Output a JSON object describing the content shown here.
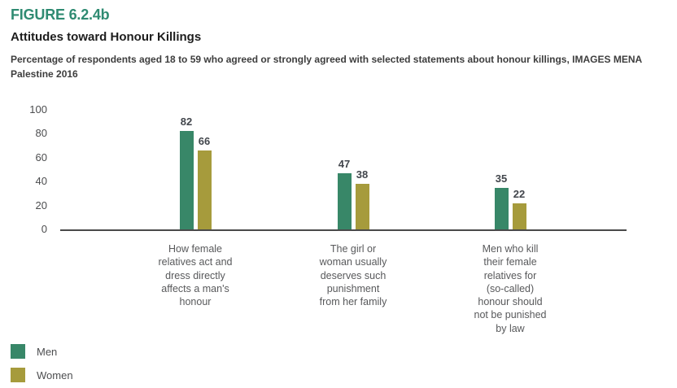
{
  "figure": {
    "label": "FIGURE 6.2.4b",
    "title": "Attitudes toward Honour Killings",
    "subtitle": "Percentage of respondents aged 18 to 59 who agreed or strongly agreed with selected statements about honour killings, IMAGES MENA\nPalestine 2016"
  },
  "colors": {
    "figure_label_green": "#2f8b72",
    "men_green": "#388768",
    "women_olive": "#a69b3c",
    "axis_line": "#4a4a4a"
  },
  "chart_data": {
    "type": "bar",
    "categories": [
      "How female\nrelatives act and\ndress directly\naffects a man's\nhonour",
      "The girl or\nwoman usually\ndeserves such\npunishment\nfrom her family",
      "Men who kill\ntheir female\nrelatives for\n(so-called)\nhonour should\nnot be punished\nby law"
    ],
    "series": [
      {
        "name": "Men",
        "color": "#388768",
        "values": [
          82,
          47,
          35
        ]
      },
      {
        "name": "Women",
        "color": "#a69b3c",
        "values": [
          66,
          38,
          22
        ]
      }
    ],
    "title": "Attitudes toward Honour Killings",
    "xlabel": "",
    "ylabel": "",
    "ylim": [
      0,
      100
    ],
    "yticks": [
      100,
      80,
      60,
      40,
      20,
      0
    ],
    "grid": false,
    "data_labels": true,
    "legend_position": "bottom-left"
  },
  "legend": {
    "items": [
      {
        "label": "Men",
        "color": "#388768"
      },
      {
        "label": "Women",
        "color": "#a69b3c"
      }
    ]
  }
}
